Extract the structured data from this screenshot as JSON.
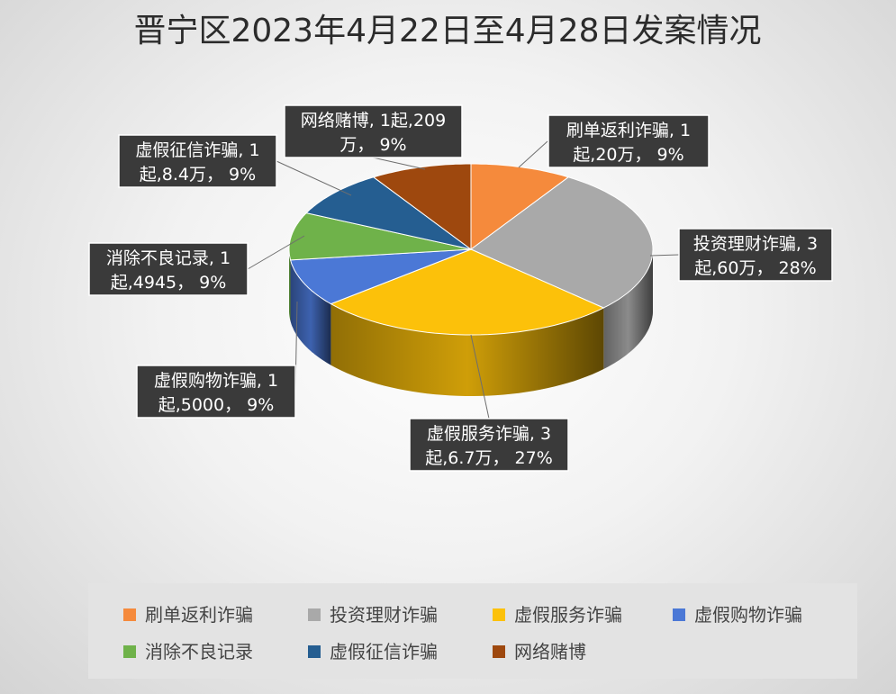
{
  "chart_data": {
    "type": "pie",
    "title": "晋宁区2023年4月22日至4月28日发案情况",
    "slices": [
      {
        "name": "刷单返利诈骗",
        "cases": 1,
        "percent": 9,
        "label": [
          "刷单返利诈骗, 1",
          "起,20万， 9%"
        ],
        "color": "#f58a3c"
      },
      {
        "name": "投资理财诈骗",
        "cases": 3,
        "percent": 28,
        "label": [
          "投资理财诈骗, 3",
          "起,60万， 28%"
        ],
        "color": "#a9a9a9"
      },
      {
        "name": "虚假服务诈骗",
        "cases": 3,
        "percent": 27,
        "label": [
          "虚假服务诈骗, 3",
          "起,6.7万， 27%"
        ],
        "color": "#fcc10a"
      },
      {
        "name": "虚假购物诈骗",
        "cases": 1,
        "percent": 9,
        "label": [
          "虚假购物诈骗, 1",
          "起,5000， 9%"
        ],
        "color": "#4b78d6"
      },
      {
        "name": "消除不良记录",
        "cases": 1,
        "percent": 9,
        "label": [
          "消除不良记录, 1",
          "起,4945， 9%"
        ],
        "color": "#6fb24a"
      },
      {
        "name": "虚假征信诈骗",
        "cases": 1,
        "percent": 9,
        "label": [
          "虚假征信诈骗, 1",
          "起,8.4万， 9%"
        ],
        "color": "#255e91"
      },
      {
        "name": "网络赌博",
        "cases": 1,
        "percent": 9,
        "label": [
          "网络赌博, 1起,209",
          "万， 9%"
        ],
        "color": "#9e480e"
      }
    ],
    "legend_position": "bottom"
  }
}
